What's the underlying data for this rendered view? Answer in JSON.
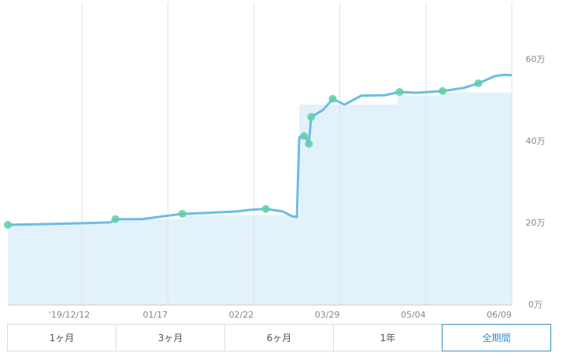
{
  "chart_data": {
    "type": "line",
    "xlim": [
      -31,
      180
    ],
    "ylim": [
      0,
      74
    ],
    "xticks": [
      {
        "value": 0,
        "label": "'19/12/12"
      },
      {
        "value": 36,
        "label": "01/17"
      },
      {
        "value": 72,
        "label": "02/22"
      },
      {
        "value": 108,
        "label": "03/29"
      },
      {
        "value": 144,
        "label": "05/04"
      },
      {
        "value": 180,
        "label": "06/09"
      }
    ],
    "yticks": [
      {
        "value": 0,
        "label": "0万"
      },
      {
        "value": 20,
        "label": "20万"
      },
      {
        "value": 40,
        "label": "40万"
      },
      {
        "value": 60,
        "label": "60万"
      }
    ],
    "series": [
      {
        "kind": "line",
        "color": "#6cbde3",
        "x": [
          -31,
          -15,
          -1,
          12,
          14,
          25,
          42,
          51,
          65,
          71,
          77,
          84,
          88,
          90,
          91,
          93,
          94,
          95,
          96,
          101,
          105,
          110,
          117,
          127,
          133,
          140,
          151,
          160,
          166,
          173,
          177,
          180
        ],
        "values": [
          19.6,
          19.8,
          20.0,
          20.2,
          21.0,
          21.0,
          22.3,
          22.5,
          22.9,
          23.3,
          23.5,
          22.9,
          21.7,
          21.5,
          41.0,
          41.3,
          40.8,
          39.4,
          46.0,
          47.7,
          50.4,
          49.0,
          51.2,
          51.3,
          52.1,
          51.9,
          52.3,
          53.1,
          54.2,
          56.0,
          56.3,
          56.2
        ]
      },
      {
        "kind": "area",
        "color": "#e3f1fa",
        "x": [
          -31,
          13,
          13,
          43,
          43,
          91,
          91,
          132,
          132,
          152,
          152,
          180
        ],
        "values": [
          19.8,
          19.8,
          21.0,
          21.0,
          22.0,
          22.0,
          49.0,
          49.0,
          51.2,
          51.2,
          52.0,
          52.0
        ]
      },
      {
        "kind": "marker",
        "color": "#5ccfa6",
        "x": [
          -31,
          14,
          42,
          77,
          93,
          95,
          96,
          105,
          133,
          151,
          166
        ],
        "values": [
          19.6,
          21.0,
          22.3,
          23.5,
          41.3,
          39.4,
          46.0,
          50.4,
          52.1,
          52.3,
          54.2
        ]
      }
    ]
  },
  "ui": {
    "buttons": [
      "1ヶ月",
      "3ヶ月",
      "6ヶ月",
      "1年",
      "全期間"
    ],
    "selected": 4
  }
}
